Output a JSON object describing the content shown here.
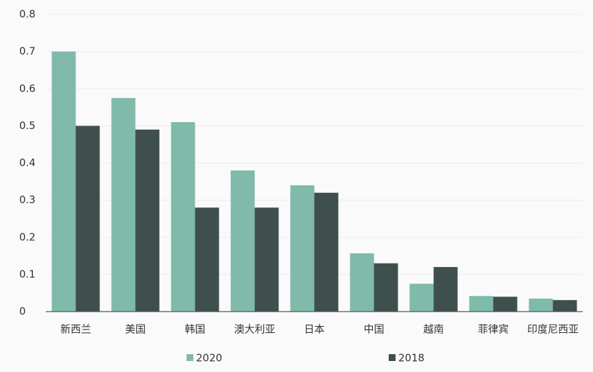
{
  "chart_data": {
    "type": "bar",
    "categories": [
      "新西兰",
      "美国",
      "韩国",
      "澳大利亚",
      "日本",
      "中国",
      "越南",
      "菲律宾",
      "印度尼西亚"
    ],
    "series": [
      {
        "name": "2020",
        "color": "#7fbaab",
        "values": [
          0.7,
          0.575,
          0.51,
          0.38,
          0.34,
          0.157,
          0.075,
          0.042,
          0.035
        ]
      },
      {
        "name": "2018",
        "color": "#3f4f4e",
        "values": [
          0.5,
          0.49,
          0.28,
          0.28,
          0.32,
          0.13,
          0.12,
          0.04,
          0.031
        ]
      }
    ],
    "ylim": [
      0,
      0.8
    ],
    "yticks": [
      0,
      0.1,
      0.2,
      0.3,
      0.4,
      0.5,
      0.6,
      0.7,
      0.8
    ],
    "grid": true,
    "legend": "bottom"
  }
}
